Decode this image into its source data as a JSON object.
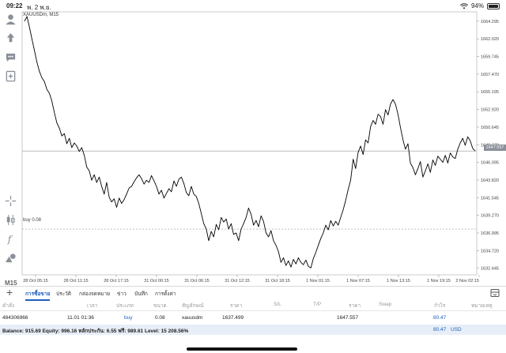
{
  "status": {
    "time": "09:22",
    "date": "พ. 2 พ.ย.",
    "battery": "94%"
  },
  "chart": {
    "symbol_title": "XAUUSDm, M15",
    "timeframe": "M15",
    "order_label": "buy 0.08",
    "current_price_badge": "1647.557",
    "colors": {
      "price_line": "#000000",
      "grid": "#d8d8d8",
      "badge": "#8a8f99",
      "accent": "#1e5fbf"
    }
  },
  "chart_data": {
    "type": "line",
    "title": "XAUUSDm, M15",
    "y_ticks": [
      "1664.295",
      "1662.020",
      "1659.745",
      "1657.470",
      "1655.195",
      "1652.920",
      "1650.645",
      "1648.370",
      "1646.095",
      "1643.820",
      "1641.545",
      "1639.270",
      "1636.995",
      "1634.720",
      "1632.445"
    ],
    "x_ticks": [
      "28 Oct 05:15",
      "28 Oct 11:15",
      "28 Oct 17:15",
      "31 Oct 00:15",
      "31 Oct 06:15",
      "31 Oct 12:15",
      "31 Oct 18:15",
      "1 Nov 01:15",
      "1 Nov 07:15",
      "1 Nov 13:15",
      "1 Nov 19:15",
      "2 Nov 02:15"
    ],
    "ylim": [
      1631.6,
      1665.5
    ],
    "current_price": 1647.557,
    "order_price": 1637.499,
    "series": [
      {
        "values": [
          1664.3,
          1664.9,
          1663.5,
          1662.0,
          1660.5,
          1659.0,
          1657.8,
          1657.0,
          1656.5,
          1655.5,
          1655.0,
          1654.0,
          1652.5,
          1651.2,
          1650.5,
          1649.5,
          1649.8,
          1648.5,
          1649.2,
          1648.0,
          1648.6,
          1648.2,
          1647.5,
          1648.0,
          1647.0,
          1645.5,
          1645.0,
          1643.8,
          1644.5,
          1643.5,
          1644.2,
          1643.0,
          1642.0,
          1643.5,
          1641.6,
          1641.0,
          1641.4,
          1640.3,
          1641.5,
          1640.8,
          1641.3,
          1642.0,
          1642.8,
          1643.0,
          1643.6,
          1644.1,
          1644.5,
          1644.0,
          1643.3,
          1643.8,
          1643.5,
          1644.4,
          1643.7,
          1643.0,
          1642.0,
          1642.5,
          1641.5,
          1642.1,
          1642.7,
          1642.3,
          1643.7,
          1643.0,
          1643.9,
          1644.2,
          1643.4,
          1642.2,
          1641.8,
          1643.0,
          1642.0,
          1641.7,
          1640.8,
          1639.5,
          1638.2,
          1637.5,
          1636.0,
          1637.2,
          1636.5,
          1638.1,
          1637.4,
          1639.0,
          1638.4,
          1638.8,
          1637.5,
          1638.2,
          1636.8,
          1637.0,
          1636.0,
          1637.5,
          1638.2,
          1639.0,
          1640.2,
          1639.4,
          1638.0,
          1638.6,
          1637.8,
          1639.2,
          1638.5,
          1637.0,
          1636.5,
          1637.3,
          1636.0,
          1635.4,
          1634.6,
          1633.2,
          1633.8,
          1632.8,
          1633.4,
          1632.6,
          1633.6,
          1633.0,
          1633.8,
          1633.2,
          1632.9,
          1633.5,
          1632.7,
          1632.5,
          1633.7,
          1634.5,
          1635.4,
          1636.3,
          1637.0,
          1638.0,
          1637.4,
          1638.6,
          1637.9,
          1638.5,
          1638.0,
          1639.0,
          1640.0,
          1641.2,
          1642.6,
          1643.8,
          1646.5,
          1645.3,
          1647.4,
          1648.2,
          1647.1,
          1649.0,
          1648.6,
          1650.7,
          1651.5,
          1651.0,
          1652.3,
          1652.0,
          1651.0,
          1652.9,
          1652.2,
          1653.6,
          1654.2,
          1653.6,
          1652.3,
          1650.6,
          1649.0,
          1647.8,
          1648.5,
          1646.0,
          1645.4,
          1644.5,
          1645.3,
          1646.2,
          1644.2,
          1645.0,
          1645.9,
          1644.8,
          1646.4,
          1645.7,
          1646.9,
          1646.5,
          1646.1,
          1647.0,
          1646.0,
          1647.3,
          1646.8,
          1646.6,
          1647.8,
          1648.6,
          1649.2,
          1648.3,
          1649.4,
          1648.9,
          1647.9,
          1647.56
        ]
      }
    ]
  },
  "tabs": {
    "items": [
      "การซื้อขาย",
      "ประวัติ",
      "กล่องจดหมาย",
      "ข่าว",
      "บันทึก",
      "การตั้งค่า"
    ]
  },
  "table": {
    "headers": [
      "คำสั่ง",
      "เวลา",
      "ประเภท",
      "ขนาด",
      "สัญลักษณ์",
      "ราคา",
      "S/L",
      "T/P",
      "ราคา",
      "Swap",
      "กำไร",
      "หมายเหตุ"
    ],
    "row": {
      "order": "484306966",
      "time": "11.01 01:36",
      "type": "buy",
      "size": "0.08",
      "symbol": "xauusdm",
      "price": "1637.499",
      "current_price": "1647.557",
      "profit": "80.47"
    }
  },
  "balance": {
    "text": "Balance: 915.69 Equity: 996.16 หลักประกัน: 6.55 ฟรี: 989.61 Level: 15 208.56%",
    "profit": "80.47",
    "currency": "USD"
  }
}
